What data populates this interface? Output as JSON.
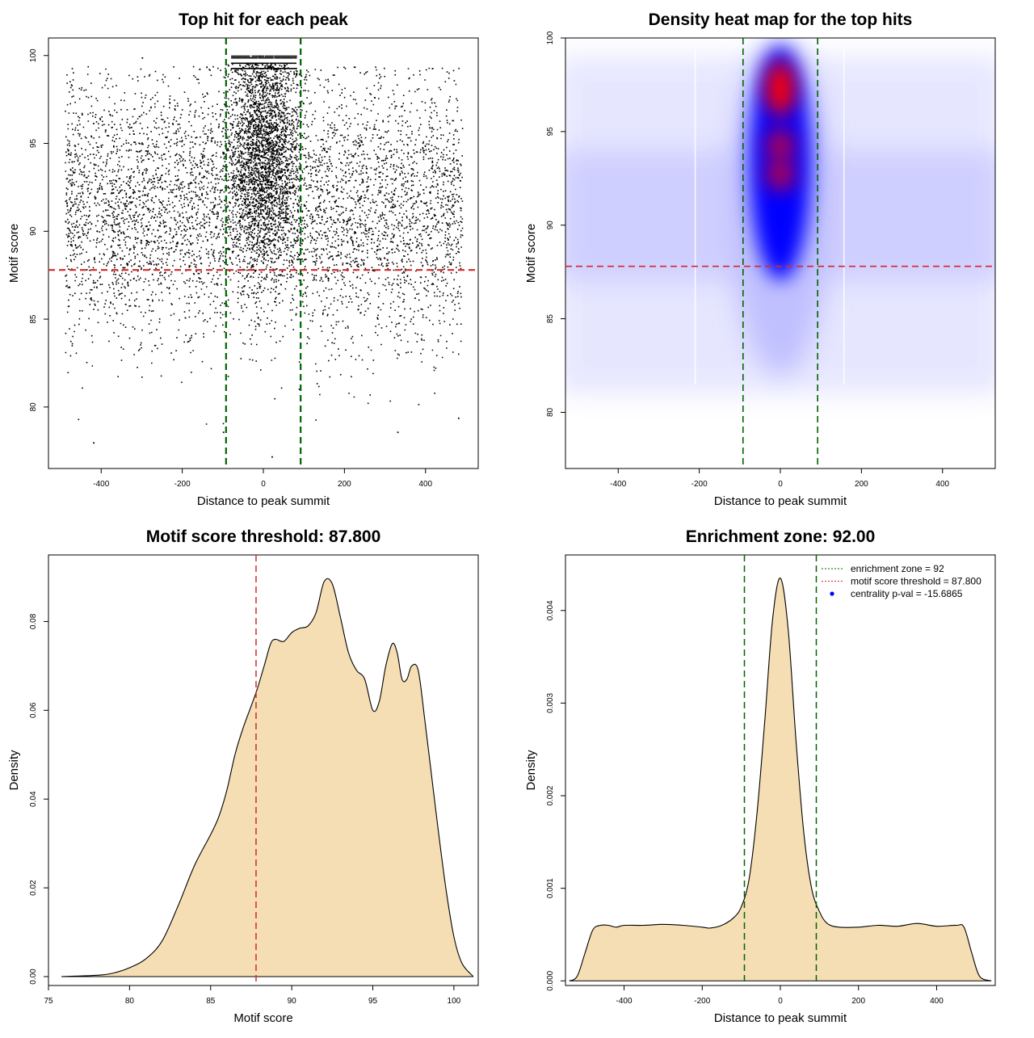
{
  "chart_data": [
    {
      "type": "scatter",
      "title": "Top hit for each peak",
      "xlabel": "Distance to peak summit",
      "ylabel": "Motif score",
      "xlim": [
        -530,
        530
      ],
      "ylim": [
        76.5,
        101
      ],
      "xticks": [
        -400,
        -200,
        0,
        200,
        400
      ],
      "yticks": [
        80,
        85,
        90,
        95,
        100
      ],
      "hlines": [
        {
          "y": 87.8,
          "color": "#d62728",
          "style": "dashed"
        }
      ],
      "vlines": [
        {
          "x": -92,
          "color": "#006400",
          "style": "dashed"
        },
        {
          "x": 92,
          "color": "#006400",
          "style": "dashed"
        }
      ],
      "points_description_x_range": [
        -490,
        490
      ],
      "point_color": "#000000",
      "sample_points": [
        [
          -420,
          78.0
        ],
        [
          -100,
          78.6
        ],
        [
          20,
          77.2
        ],
        [
          330,
          78.6
        ],
        [
          480,
          79.4
        ],
        [
          -10,
          100.0
        ],
        [
          50,
          99.5
        ],
        [
          -300,
          99.9
        ]
      ]
    },
    {
      "type": "heatmap",
      "title": "Density heat map for the top hits",
      "xlabel": "Distance to peak summit",
      "ylabel": "Motif score",
      "xlim": [
        -530,
        530
      ],
      "ylim": [
        77,
        100
      ],
      "xticks": [
        -400,
        -200,
        0,
        200,
        400
      ],
      "yticks": [
        80,
        85,
        90,
        95,
        100
      ],
      "hlines": [
        {
          "y": 87.8,
          "color": "#d62728",
          "style": "dashed"
        }
      ],
      "vlines": [
        {
          "x": -92,
          "color": "#006400",
          "style": "dashed"
        },
        {
          "x": 92,
          "color": "#006400",
          "style": "dashed"
        }
      ],
      "color_scale": [
        "#ffffff",
        "#0000ff",
        "#ff0000"
      ],
      "hotspots": [
        {
          "x": 0,
          "y": 97.3,
          "intensity": "red"
        },
        {
          "x": 0,
          "y": 94.3,
          "intensity": "red"
        },
        {
          "x": 0,
          "y": 92.7,
          "intensity": "red"
        }
      ]
    },
    {
      "type": "area",
      "title": "Motif score threshold: 87.800",
      "xlabel": "Motif score",
      "ylabel": "Density",
      "xlim": [
        75,
        101.5
      ],
      "ylim": [
        -0.002,
        0.095
      ],
      "xticks": [
        75,
        80,
        85,
        90,
        95,
        100
      ],
      "yticks": [
        0.0,
        0.02,
        0.04,
        0.06,
        0.08
      ],
      "ytick_labels": [
        "0.00",
        "0.02",
        "0.04",
        "0.06",
        "0.08"
      ],
      "fill_color": "#f5deb3",
      "vlines": [
        {
          "x": 87.8,
          "color": "#d62728",
          "style": "dashed"
        }
      ],
      "x": [
        75.8,
        78,
        79,
        80,
        81,
        82,
        83,
        84,
        85,
        85.5,
        86,
        86.5,
        87,
        87.8,
        88.3,
        88.7,
        89,
        89.5,
        90,
        90.5,
        91,
        91.5,
        92,
        92.5,
        93,
        93.5,
        94,
        94.5,
        95,
        95.4,
        95.8,
        96.2,
        96.5,
        96.8,
        97.1,
        97.4,
        97.8,
        98.2,
        98.6,
        99,
        99.5,
        100,
        100.5,
        101.2
      ],
      "y": [
        0.0,
        0.0003,
        0.0008,
        0.002,
        0.004,
        0.008,
        0.016,
        0.025,
        0.032,
        0.036,
        0.042,
        0.05,
        0.056,
        0.064,
        0.07,
        0.075,
        0.076,
        0.0755,
        0.0775,
        0.0785,
        0.079,
        0.082,
        0.089,
        0.0885,
        0.081,
        0.073,
        0.069,
        0.067,
        0.06,
        0.062,
        0.07,
        0.075,
        0.073,
        0.067,
        0.067,
        0.07,
        0.069,
        0.058,
        0.046,
        0.034,
        0.02,
        0.009,
        0.003,
        0.0
      ]
    },
    {
      "type": "area",
      "title": "Enrichment zone: 92.00",
      "xlabel": "Distance to peak summit",
      "ylabel": "Density",
      "xlim": [
        -550,
        550
      ],
      "ylim": [
        -5e-05,
        0.0046
      ],
      "xticks": [
        -400,
        -200,
        0,
        200,
        400
      ],
      "yticks": [
        0.0,
        0.001,
        0.002,
        0.003,
        0.004
      ],
      "ytick_labels": [
        "0.000",
        "0.001",
        "0.002",
        "0.003",
        "0.004"
      ],
      "fill_color": "#f5deb3",
      "vlines": [
        {
          "x": -92,
          "color": "#006400",
          "style": "dashed"
        },
        {
          "x": 92,
          "color": "#006400",
          "style": "dashed"
        }
      ],
      "x": [
        -540,
        -520,
        -500,
        -480,
        -460,
        -440,
        -420,
        -400,
        -350,
        -300,
        -250,
        -200,
        -180,
        -150,
        -120,
        -100,
        -80,
        -60,
        -40,
        -20,
        0,
        20,
        40,
        60,
        80,
        100,
        120,
        150,
        200,
        250,
        300,
        350,
        400,
        450,
        470,
        490,
        510,
        540
      ],
      "y": [
        0.0,
        5e-05,
        0.0003,
        0.00055,
        0.0006,
        0.0006,
        0.00058,
        0.0006,
        0.0006,
        0.00061,
        0.0006,
        0.00058,
        0.00057,
        0.0006,
        0.00068,
        0.0008,
        0.0011,
        0.0018,
        0.0028,
        0.0039,
        0.00435,
        0.0038,
        0.0026,
        0.0016,
        0.001,
        0.00075,
        0.00062,
        0.00058,
        0.00058,
        0.0006,
        0.00059,
        0.00062,
        0.00059,
        0.0006,
        0.00058,
        0.0003,
        5e-05,
        0.0
      ],
      "legend": {
        "placement": "top-right",
        "entries": [
          {
            "label": "enrichment zone = 92",
            "color": "#006400",
            "style": "dotted"
          },
          {
            "label": "motif score threshold = 87.800",
            "color": "#d62728",
            "style": "dotted"
          },
          {
            "label": "centrality p-val = -15.6865",
            "color": "#0000ff",
            "style": "point"
          }
        ]
      }
    }
  ]
}
